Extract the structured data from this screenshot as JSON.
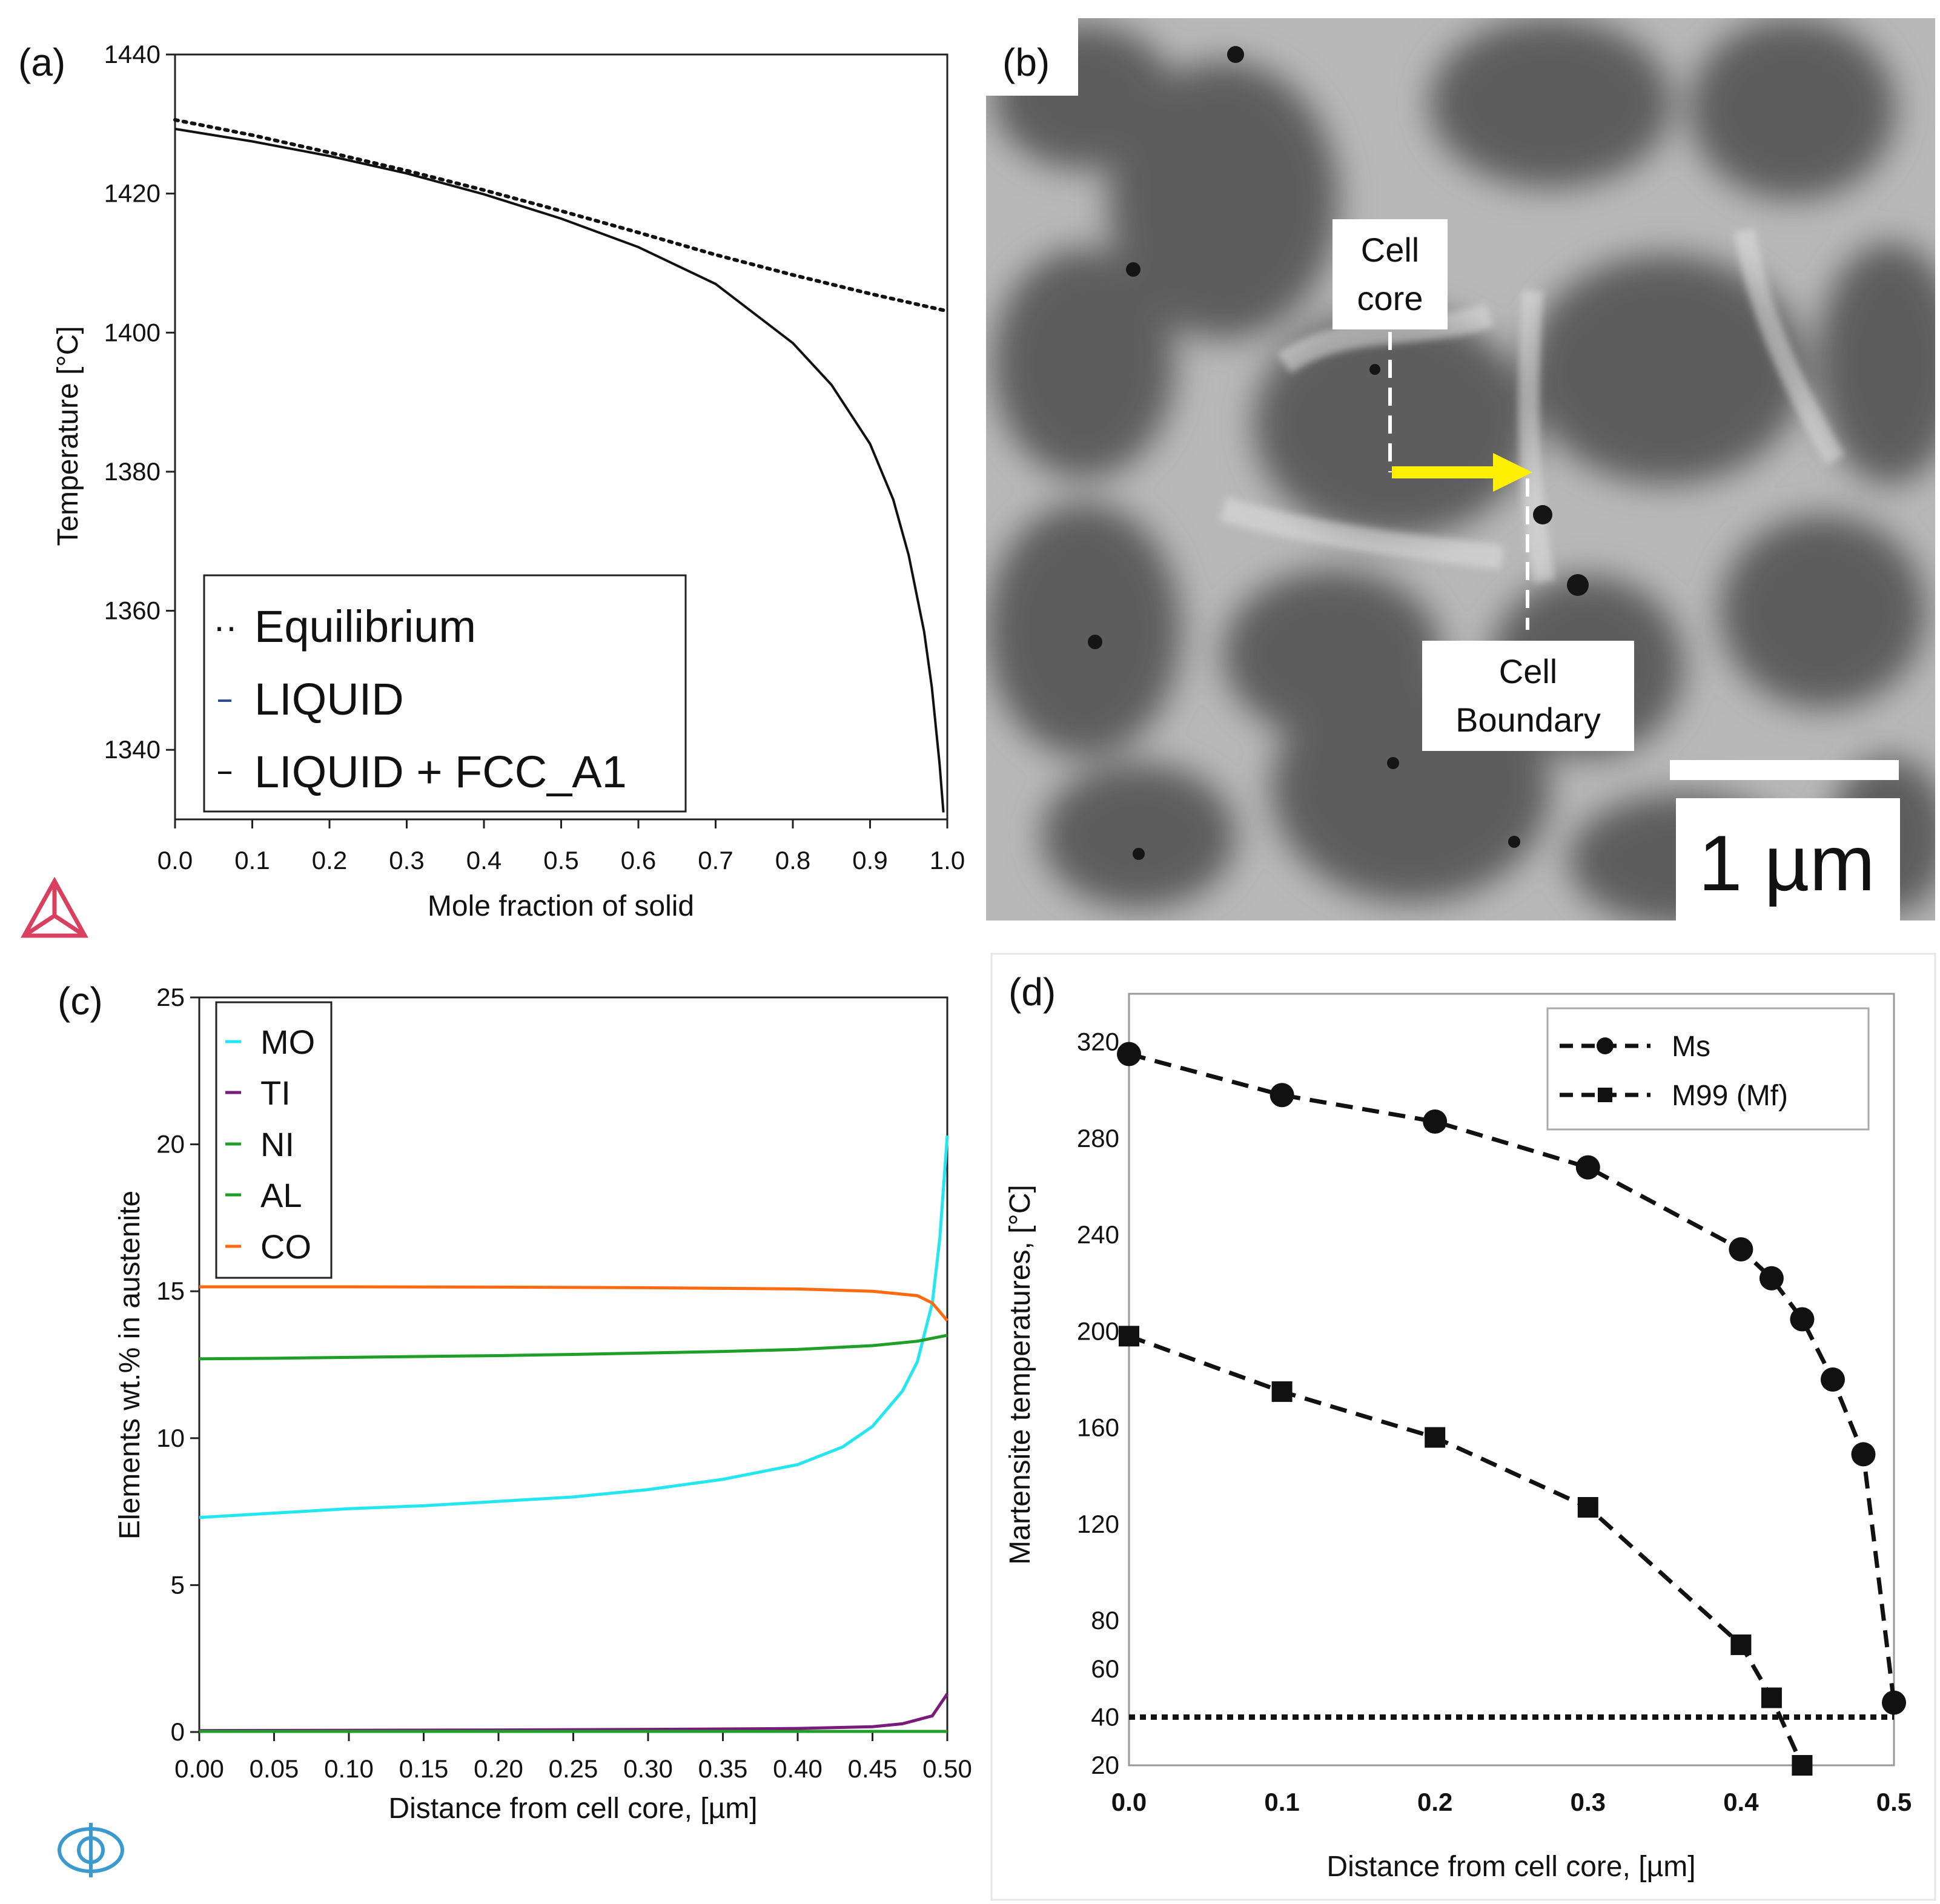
{
  "panel_labels": {
    "a": "(a)",
    "b": "(b)",
    "c": "(c)",
    "d": "(d)"
  },
  "icons": {
    "a": "thermo-calc-logo-icon",
    "c": "dictra-logo-icon"
  },
  "colors": {
    "mo": "#22e6f0",
    "ti": "#7a1a7a",
    "ni": "#1f9e2a",
    "al": "#1f9e2a",
    "co": "#ff6a10",
    "arrow": "#ffef00",
    "liquid": "#2a4aa0"
  },
  "micrograph": {
    "label_core": [
      "Cell",
      "core"
    ],
    "label_boundary": [
      "Cell",
      "Boundary"
    ],
    "scale_text": "1 µm"
  },
  "chart_data": [
    {
      "panel": "a",
      "type": "line",
      "xlabel": "Mole fraction of solid",
      "ylabel": "Temperature [°C]",
      "xlim": [
        0.0,
        1.0
      ],
      "ylim": [
        1330,
        1440
      ],
      "xticks": [
        "0.0",
        "0.1",
        "0.2",
        "0.3",
        "0.4",
        "0.5",
        "0.6",
        "0.7",
        "0.8",
        "0.9",
        "1.0"
      ],
      "yticks": [
        "1340",
        "1360",
        "1380",
        "1400",
        "1420",
        "1440"
      ],
      "xtick_values": [
        0,
        0.1,
        0.2,
        0.3,
        0.4,
        0.5,
        0.6,
        0.7,
        0.8,
        0.9,
        1.0
      ],
      "ytick_values": [
        1340,
        1360,
        1380,
        1400,
        1420,
        1440
      ],
      "legend": [
        "Equilibrium",
        "LIQUID",
        "LIQUID + FCC_A1"
      ],
      "series": [
        {
          "name": "Equilibrium",
          "style": "dotted",
          "x": [
            0.0,
            0.1,
            0.2,
            0.3,
            0.4,
            0.5,
            0.6,
            0.7,
            0.8,
            0.9,
            1.0
          ],
          "y": [
            1430.6,
            1428.4,
            1425.9,
            1423.3,
            1420.5,
            1417.5,
            1414.4,
            1411.2,
            1408.3,
            1405.6,
            1403.1
          ]
        },
        {
          "name": "LIQUID + FCC_A1",
          "style": "solid",
          "x": [
            0.0,
            0.1,
            0.2,
            0.3,
            0.4,
            0.5,
            0.6,
            0.7,
            0.8,
            0.85,
            0.9,
            0.93,
            0.95,
            0.97,
            0.98,
            0.99,
            0.995
          ],
          "y": [
            1429.3,
            1427.5,
            1425.4,
            1422.9,
            1419.9,
            1416.4,
            1412.3,
            1407.0,
            1398.5,
            1392.5,
            1384.0,
            1376.0,
            1368.0,
            1357.0,
            1349.0,
            1338.0,
            1331.0
          ]
        }
      ]
    },
    {
      "panel": "c",
      "type": "line",
      "xlabel": "Distance from cell core, [µm]",
      "ylabel": "Elements wt.% in austenite",
      "xlim": [
        0.0,
        0.5
      ],
      "ylim": [
        0,
        25
      ],
      "xticks": [
        "0.00",
        "0.05",
        "0.10",
        "0.15",
        "0.20",
        "0.25",
        "0.30",
        "0.35",
        "0.40",
        "0.45",
        "0.50"
      ],
      "yticks": [
        "0",
        "5",
        "10",
        "15",
        "20",
        "25"
      ],
      "xtick_values": [
        0,
        0.05,
        0.1,
        0.15,
        0.2,
        0.25,
        0.3,
        0.35,
        0.4,
        0.45,
        0.5
      ],
      "ytick_values": [
        0,
        5,
        10,
        15,
        20,
        25
      ],
      "legend": [
        "MO",
        "TI",
        "NI",
        "AL",
        "CO"
      ],
      "series": [
        {
          "name": "MO",
          "color_key": "mo",
          "x": [
            0.0,
            0.05,
            0.1,
            0.15,
            0.2,
            0.25,
            0.3,
            0.35,
            0.4,
            0.43,
            0.45,
            0.47,
            0.48,
            0.49,
            0.495,
            0.5
          ],
          "y": [
            7.3,
            7.45,
            7.6,
            7.7,
            7.85,
            8.0,
            8.25,
            8.6,
            9.1,
            9.7,
            10.4,
            11.6,
            12.6,
            14.6,
            16.8,
            20.3
          ]
        },
        {
          "name": "TI",
          "color_key": "ti",
          "x": [
            0.0,
            0.1,
            0.2,
            0.3,
            0.4,
            0.45,
            0.47,
            0.49,
            0.5
          ],
          "y": [
            0.05,
            0.06,
            0.07,
            0.09,
            0.12,
            0.18,
            0.28,
            0.55,
            1.3
          ]
        },
        {
          "name": "NI",
          "color_key": "ni",
          "x": [
            0.0,
            0.05,
            0.1,
            0.15,
            0.2,
            0.25,
            0.3,
            0.35,
            0.4,
            0.45,
            0.48,
            0.5
          ],
          "y": [
            12.7,
            12.72,
            12.75,
            12.78,
            12.81,
            12.85,
            12.9,
            12.95,
            13.02,
            13.15,
            13.3,
            13.5
          ]
        },
        {
          "name": "AL",
          "color_key": "al",
          "x": [
            0.0,
            0.25,
            0.5
          ],
          "y": [
            0.02,
            0.02,
            0.02
          ]
        },
        {
          "name": "CO",
          "color_key": "co",
          "x": [
            0.0,
            0.1,
            0.2,
            0.3,
            0.4,
            0.45,
            0.48,
            0.49,
            0.5
          ],
          "y": [
            15.15,
            15.15,
            15.14,
            15.12,
            15.08,
            15.0,
            14.85,
            14.6,
            14.0
          ]
        }
      ]
    },
    {
      "panel": "d",
      "type": "line",
      "xlabel": "Distance from cell core, [µm]",
      "ylabel": "Martensite temperatures, [°C]",
      "xlim": [
        0.0,
        0.5
      ],
      "ylim": [
        20,
        340
      ],
      "xticks": [
        "0.0",
        "0.1",
        "0.2",
        "0.3",
        "0.4",
        "0.5"
      ],
      "yticks": [
        "20",
        "40",
        "60",
        "80",
        "120",
        "160",
        "200",
        "240",
        "280",
        "320"
      ],
      "xtick_values": [
        0,
        0.1,
        0.2,
        0.3,
        0.4,
        0.5
      ],
      "ytick_values": [
        20,
        40,
        60,
        80,
        120,
        160,
        200,
        240,
        280,
        320
      ],
      "legend": [
        "Ms",
        "M99 (Mf)"
      ],
      "reference_line": {
        "y": 40,
        "style": "dotted"
      },
      "series": [
        {
          "name": "Ms",
          "marker": "circle",
          "x": [
            0.0,
            0.1,
            0.2,
            0.3,
            0.4,
            0.42,
            0.44,
            0.46,
            0.48,
            0.5
          ],
          "y": [
            315,
            298,
            287,
            268,
            234,
            222,
            205,
            180,
            149,
            46
          ]
        },
        {
          "name": "M99 (Mf)",
          "marker": "square",
          "x": [
            0.0,
            0.1,
            0.2,
            0.3,
            0.4,
            0.42,
            0.44
          ],
          "y": [
            198,
            175,
            156,
            127,
            70,
            48,
            20
          ]
        }
      ]
    }
  ]
}
